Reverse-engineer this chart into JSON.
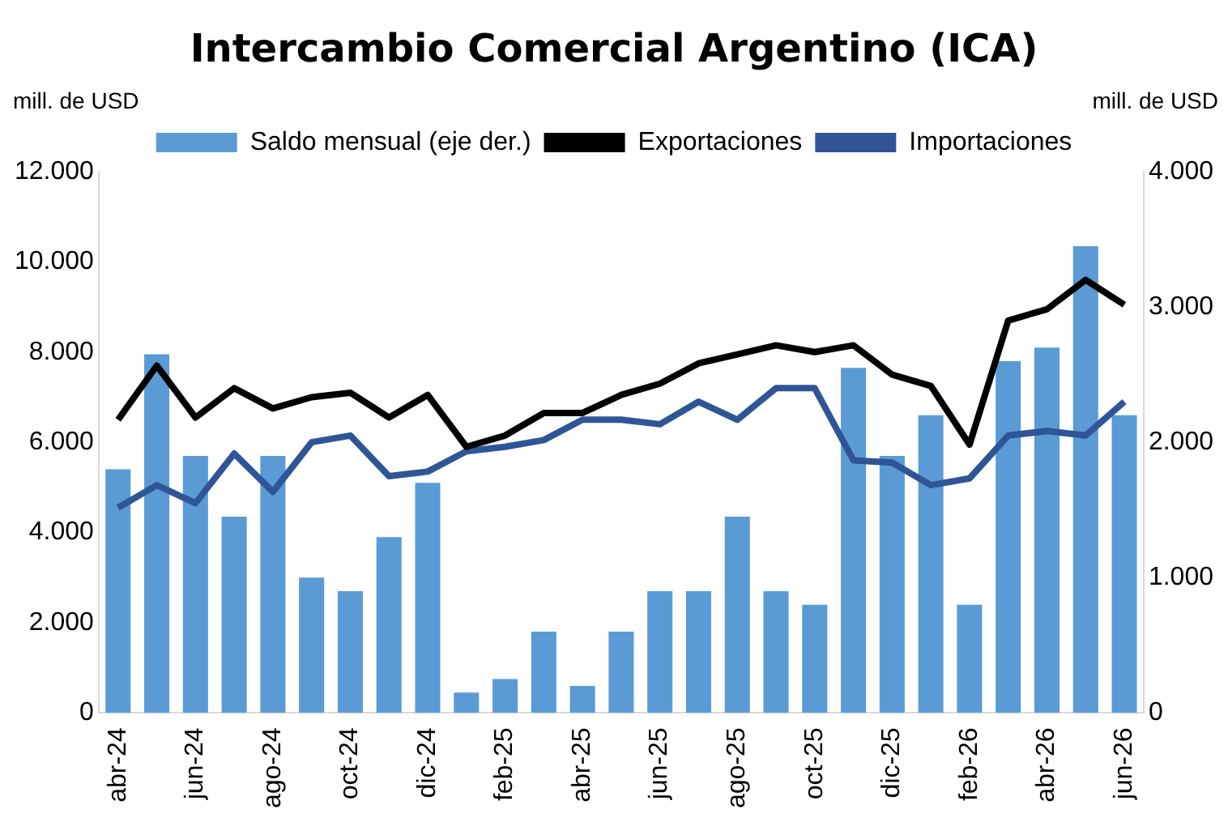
{
  "chart_data": {
    "type": "bar",
    "title": "Intercambio Comercial Argentino (ICA)",
    "ylabel": "mill. de USD",
    "y2label": "mill. de USD",
    "categories": [
      "abr-24",
      null,
      "jun-24",
      null,
      "ago-24",
      null,
      "oct-24",
      null,
      "dic-24",
      null,
      "feb-25",
      null,
      "abr-25",
      null,
      "jun-25",
      null,
      "ago-25",
      null,
      "oct-25",
      null,
      "dic-25",
      null,
      "feb-26",
      null,
      "abr-26",
      null,
      "jun-26"
    ],
    "series": [
      {
        "name": "Saldo mensual (eje der.)",
        "type": "bar",
        "axis": "y2",
        "color": "#5b9bd5",
        "values": [
          1800,
          2650,
          1900,
          1450,
          1900,
          1000,
          900,
          1300,
          1700,
          150,
          250,
          600,
          200,
          600,
          900,
          900,
          1450,
          900,
          800,
          2550,
          1900,
          2200,
          800,
          2600,
          2700,
          3450,
          2200
        ]
      },
      {
        "name": "Exportaciones",
        "type": "line",
        "color": "#000000",
        "values": [
          6500,
          7700,
          6550,
          7200,
          6750,
          7000,
          7100,
          6550,
          7050,
          5900,
          6150,
          6650,
          6650,
          7050,
          7300,
          7750,
          7950,
          8150,
          8000,
          8150,
          7500,
          7250,
          5950,
          8700,
          8950,
          9600,
          9050
        ]
      },
      {
        "name": "Importaciones",
        "type": "line",
        "color": "#2f5597",
        "values": [
          4550,
          5050,
          4650,
          5750,
          4900,
          6000,
          6150,
          5250,
          5350,
          5800,
          5900,
          6050,
          6500,
          6500,
          6400,
          6900,
          6500,
          7200,
          7200,
          5600,
          5550,
          5050,
          5200,
          6150,
          6250,
          6150,
          6900
        ]
      }
    ],
    "ylim": [
      0,
      12000
    ],
    "yticks": [
      0,
      {
        "value": 2000,
        "label": "2.000"
      },
      {
        "value": 4000,
        "label": "4.000"
      },
      {
        "value": 6000,
        "label": "6.000"
      },
      {
        "value": 8000,
        "label": "8.000"
      },
      {
        "value": 10000,
        "label": "10.000"
      },
      {
        "value": 12000,
        "label": "12.000"
      }
    ],
    "y2lim": [
      0,
      4000
    ],
    "y2ticks": [
      0,
      {
        "value": 1000,
        "label": "1.000"
      },
      {
        "value": 2000,
        "label": "2.000"
      },
      {
        "value": 3000,
        "label": "3.000"
      },
      {
        "value": 4000,
        "label": "4.000"
      }
    ],
    "legend": "top",
    "marker": "none",
    "grid": false
  }
}
